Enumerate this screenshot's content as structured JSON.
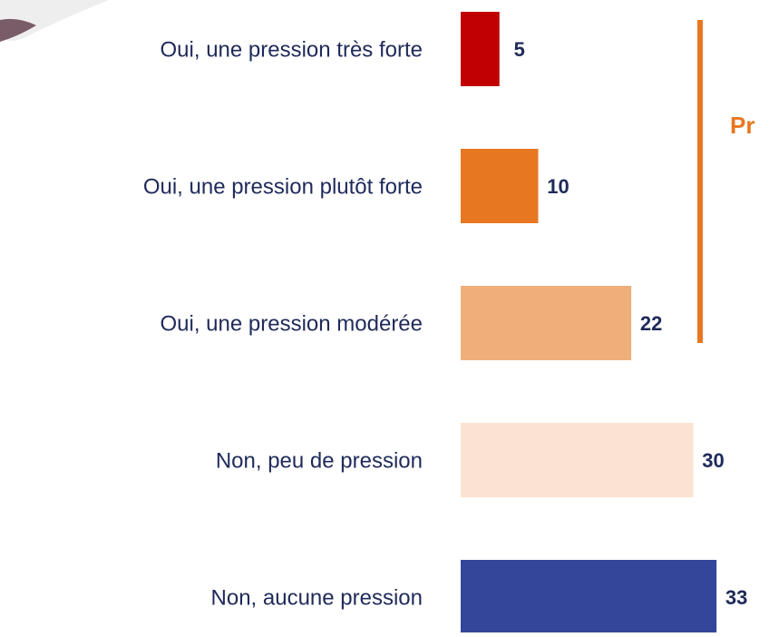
{
  "chart_data": {
    "type": "bar",
    "orientation": "horizontal",
    "categories": [
      "Oui, une pression très forte",
      "Oui, une pression plutôt forte",
      "Oui, une pression modérée",
      "Non, peu de pression",
      "Non, aucune pression"
    ],
    "values": [
      5,
      10,
      22,
      30,
      33
    ],
    "colors": [
      "#c00000",
      "#e87722",
      "#f0ae7b",
      "#fae3d2",
      "#34469a"
    ],
    "annotation": "Pr"
  }
}
